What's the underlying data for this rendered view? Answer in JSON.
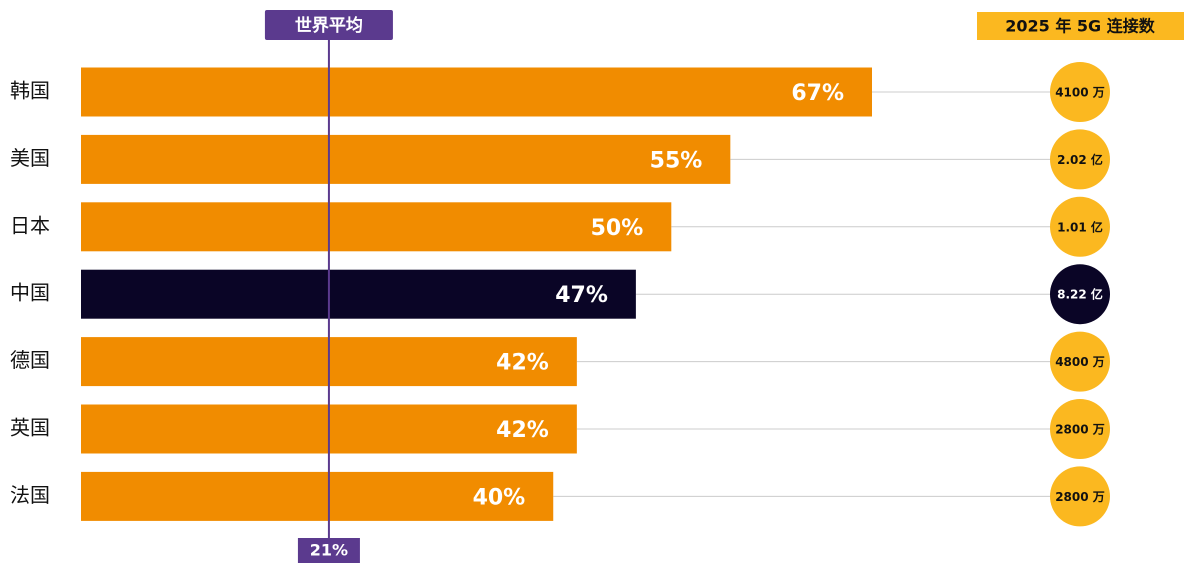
{
  "chart_data": {
    "type": "bar",
    "orientation": "horizontal",
    "categories": [
      "韩国",
      "美国",
      "日本",
      "中国",
      "德国",
      "英国",
      "法国"
    ],
    "values": [
      67,
      55,
      50,
      47,
      42,
      42,
      40
    ],
    "value_labels": [
      "67%",
      "55%",
      "50%",
      "47%",
      "42%",
      "42%",
      "40%"
    ],
    "colors": [
      "#f18c00",
      "#f18c00",
      "#f18c00",
      "#0a0526",
      "#f18c00",
      "#f18c00",
      "#f18c00"
    ],
    "reference_line": {
      "label": "世界平均",
      "value": 21,
      "value_label": "21%",
      "color": "#5b3a8e"
    },
    "connections": {
      "title": "2025 年 5G 连接数",
      "values": [
        41000000,
        202000000,
        101000000,
        822000000,
        48000000,
        28000000,
        28000000
      ],
      "value_labels": [
        "4100 万",
        "2.02 亿",
        "1.01 亿",
        "8.22 亿",
        "4800 万",
        "2800 万",
        "2800 万"
      ],
      "colors": [
        "#fbb820",
        "#fbb820",
        "#fbb820",
        "#0a0526",
        "#fbb820",
        "#fbb820",
        "#fbb820"
      ]
    }
  }
}
